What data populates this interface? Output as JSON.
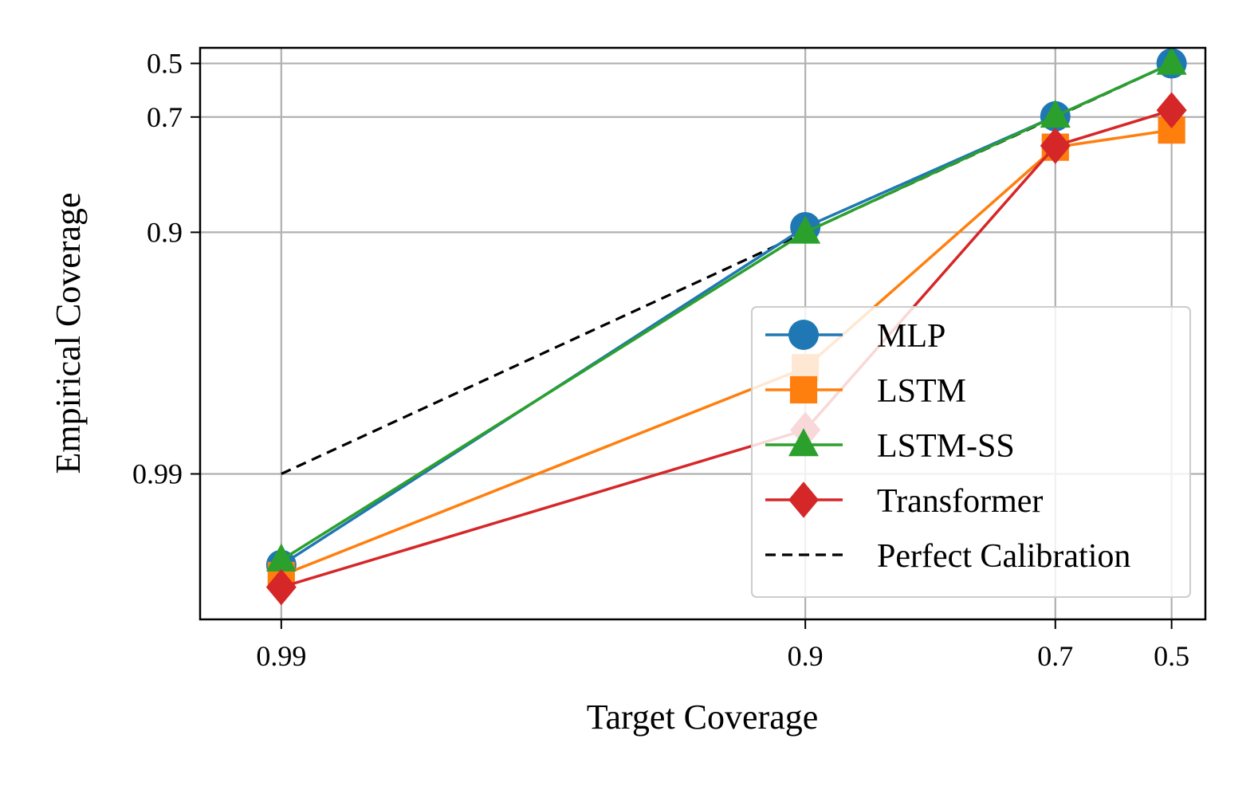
{
  "chart_data": {
    "type": "line",
    "title": "",
    "xlabel": "Target Coverage",
    "ylabel": "Empirical Coverage",
    "scale": "log(1 - coverage)",
    "x": [
      0.99,
      0.9,
      0.7,
      0.5
    ],
    "x_tick_labels": [
      "0.99",
      "0.9",
      "0.7",
      "0.5"
    ],
    "y_ticks": [
      0.5,
      0.7,
      0.9,
      0.99
    ],
    "y_tick_labels": [
      "0.5",
      "0.7",
      "0.9",
      "0.99"
    ],
    "xlim": [
      0.993,
      0.42
    ],
    "ylim": [
      0.9975,
      0.42
    ],
    "grid": true,
    "legend_position": "lower-right",
    "series": [
      {
        "name": "MLP",
        "color": "#1f77b4",
        "marker": "circle",
        "values": [
          0.9958,
          0.895,
          0.698,
          0.5
        ]
      },
      {
        "name": "LSTM",
        "color": "#ff7f0e",
        "marker": "square",
        "values": [
          0.9962,
          0.9725,
          0.775,
          0.735
        ]
      },
      {
        "name": "LSTM-SS",
        "color": "#2ca02c",
        "marker": "triangle",
        "values": [
          0.9956,
          0.9,
          0.698,
          0.5
        ]
      },
      {
        "name": "Transformer",
        "color": "#d62728",
        "marker": "diamond",
        "values": [
          0.9966,
          0.9848,
          0.772,
          0.68
        ]
      }
    ],
    "reference_line": {
      "name": "Perfect Calibration",
      "color": "#000000",
      "style": "dashed",
      "x": [
        0.99,
        0.5
      ],
      "values": [
        0.99,
        0.5
      ]
    }
  }
}
